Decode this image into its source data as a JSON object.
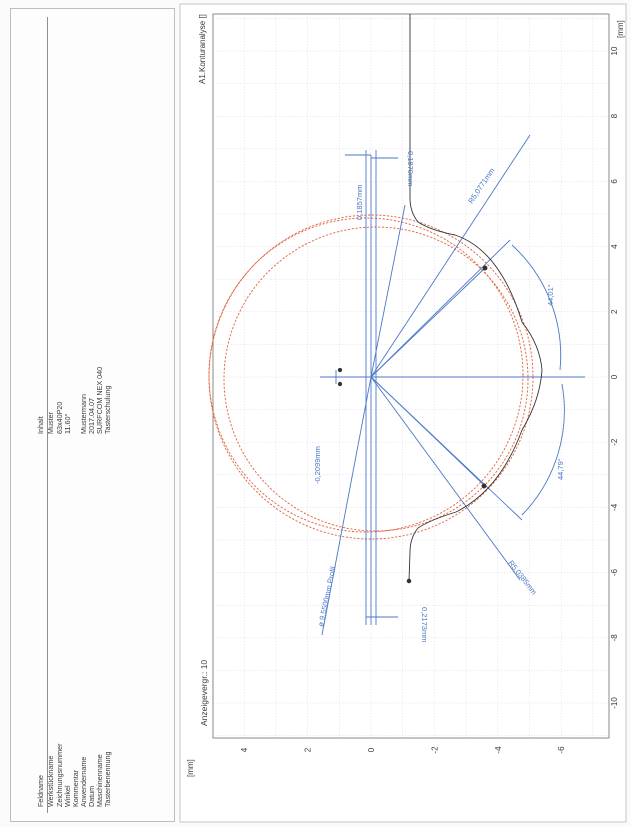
{
  "info_table": {
    "col_field_header": "Feldname",
    "col_content_header": "Inhalt",
    "fields": [
      "Werkstückname",
      "Zeichnungsnummer",
      "Winkel",
      "Kommentar",
      "Anwendername",
      "Datum",
      "Maschinenname",
      "Tasterbenennung"
    ],
    "values": [
      "Muster",
      "63x40P20",
      "11.60°",
      "",
      "Mustermann",
      "2017.04.07",
      "SURFCOM NEX 040",
      "Tasterschulung"
    ]
  },
  "chart_data": {
    "type": "contour",
    "title": "A1.Konturanalyse []",
    "magnification_label": "Anzeigevergr.: 10",
    "x_unit": "[mm]",
    "y_unit": "[mm]",
    "x_ticks": [
      "-10",
      "-8",
      "-6",
      "-4",
      "-2",
      "0",
      "2",
      "4",
      "6",
      "8",
      "10"
    ],
    "y_ticks": [
      "4",
      "2",
      "0",
      "-2",
      "-4",
      "-6"
    ],
    "xlim": [
      -11,
      11
    ],
    "ylim": [
      -6.5,
      5.5
    ],
    "grid": true,
    "colors": {
      "dimension": "#4a78c8",
      "circle": "#e0623c",
      "profile": "#333333",
      "grid": "#d6dbe6"
    },
    "annotations": {
      "upper_offset": "0,1857mm",
      "upper_radius": "R5,0771mm",
      "upper_angle": "44,01°",
      "upper_small_offset": "0,1870mm",
      "lower_offset": "-0,2099mm",
      "diameter": "ø 9,5500mm Profil",
      "lower_radius": "R5,0385mm",
      "lower_angle": "44,79°",
      "lower_small_offset": "0,2173mm"
    }
  }
}
